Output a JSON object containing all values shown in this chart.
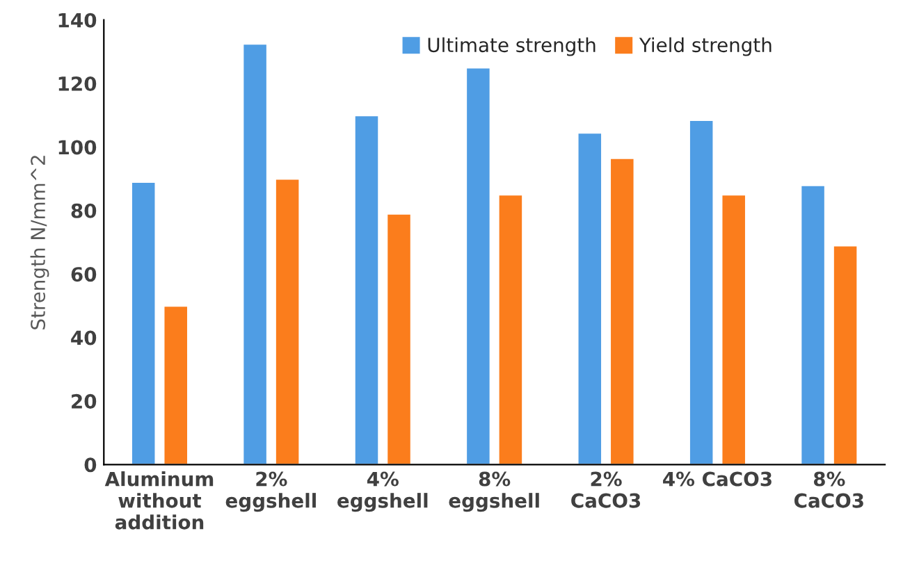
{
  "chart_data": {
    "type": "bar",
    "categories": [
      "Aluminum\nwithout\naddition",
      "2%\neggshell",
      "4%\neggshell",
      "8%\neggshell",
      "2%\nCaCO3",
      "4% CaCO3",
      "8%\nCaCO3"
    ],
    "series": [
      {
        "name": "Ultimate strength",
        "color": "#4f9de4",
        "values": [
          89,
          132.5,
          110,
          125,
          104.5,
          108.5,
          88
        ]
      },
      {
        "name": "Yield strength",
        "color": "#fb7d1c",
        "values": [
          50,
          90,
          79,
          85,
          96.5,
          85,
          69
        ]
      }
    ],
    "ylabel": "Strength N/mm^2",
    "ylim": [
      0,
      140
    ],
    "yticks": [
      0,
      20,
      40,
      60,
      80,
      100,
      120,
      140
    ],
    "legend": "top",
    "grid": false
  }
}
